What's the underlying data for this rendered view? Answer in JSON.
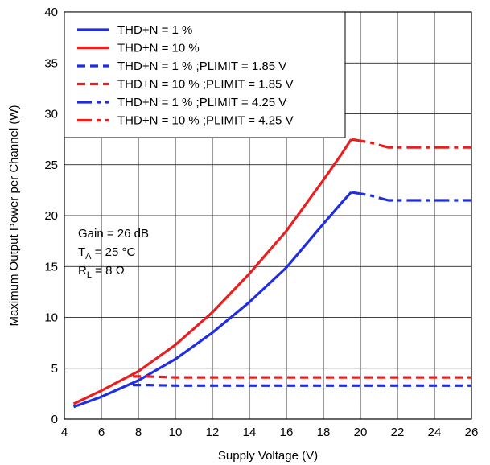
{
  "chart_data": {
    "type": "line",
    "xlabel": "Supply Voltage (V)",
    "ylabel": "Maximum Output Power per Channel (W)",
    "xlim": [
      4,
      26
    ],
    "ylim": [
      0,
      40
    ],
    "xticks": [
      4,
      6,
      8,
      10,
      12,
      14,
      16,
      18,
      20,
      22,
      24,
      26
    ],
    "yticks": [
      0,
      5,
      10,
      15,
      20,
      25,
      30,
      35,
      40
    ],
    "grid": true,
    "legend_position": "top-left",
    "annotations": {
      "gain": "Gain = 26 dB",
      "ta_main": "T",
      "ta_sub": "A",
      "ta_rest": " = 25 °C",
      "rl_main": "R",
      "rl_sub": "L",
      "rl_rest": " = 8 Ω"
    },
    "series": [
      {
        "name": "THD+N = 1 %",
        "color": "#1f2fe0",
        "style": "solid",
        "x": [
          4.5,
          6,
          8,
          10,
          12,
          14,
          16,
          18,
          19,
          19.5
        ],
        "y": [
          1.2,
          2.2,
          3.8,
          5.9,
          8.5,
          11.5,
          14.9,
          19.2,
          21.3,
          22.3
        ]
      },
      {
        "name": "THD+N = 10 %",
        "color": "#e81f1f",
        "style": "solid",
        "x": [
          4.5,
          6,
          8,
          10,
          12,
          14,
          16,
          18,
          19,
          19.5
        ],
        "y": [
          1.5,
          2.8,
          4.7,
          7.3,
          10.5,
          14.3,
          18.5,
          23.5,
          26.1,
          27.5
        ]
      },
      {
        "name": "THD+N = 1 % ;PLIMIT = 1.85 V",
        "color": "#1f2fe0",
        "style": "dash",
        "x": [
          7.7,
          8.5,
          10,
          12,
          14,
          16,
          18,
          20,
          22,
          24,
          26
        ],
        "y": [
          3.35,
          3.35,
          3.3,
          3.3,
          3.3,
          3.3,
          3.3,
          3.3,
          3.3,
          3.3,
          3.3
        ]
      },
      {
        "name": "THD+N = 10 % ;PLIMIT = 1.85 V",
        "color": "#e81f1f",
        "style": "dash",
        "x": [
          7.7,
          8.5,
          10,
          12,
          14,
          16,
          18,
          20,
          22,
          24,
          26
        ],
        "y": [
          4.2,
          4.2,
          4.1,
          4.1,
          4.1,
          4.1,
          4.1,
          4.1,
          4.1,
          4.1,
          4.1
        ]
      },
      {
        "name": "THD+N = 1 % ;PLIMIT = 4.25 V",
        "color": "#1f2fe0",
        "style": "dashdot",
        "x": [
          19.5,
          20.5,
          21.5,
          22,
          24,
          26
        ],
        "y": [
          22.3,
          22.0,
          21.5,
          21.5,
          21.5,
          21.5
        ]
      },
      {
        "name": "THD+N = 10 % ;PLIMIT = 4.25 V",
        "color": "#e81f1f",
        "style": "dashdot",
        "x": [
          19.5,
          20.5,
          21.5,
          22,
          24,
          26
        ],
        "y": [
          27.5,
          27.2,
          26.7,
          26.7,
          26.7,
          26.7
        ]
      }
    ]
  }
}
